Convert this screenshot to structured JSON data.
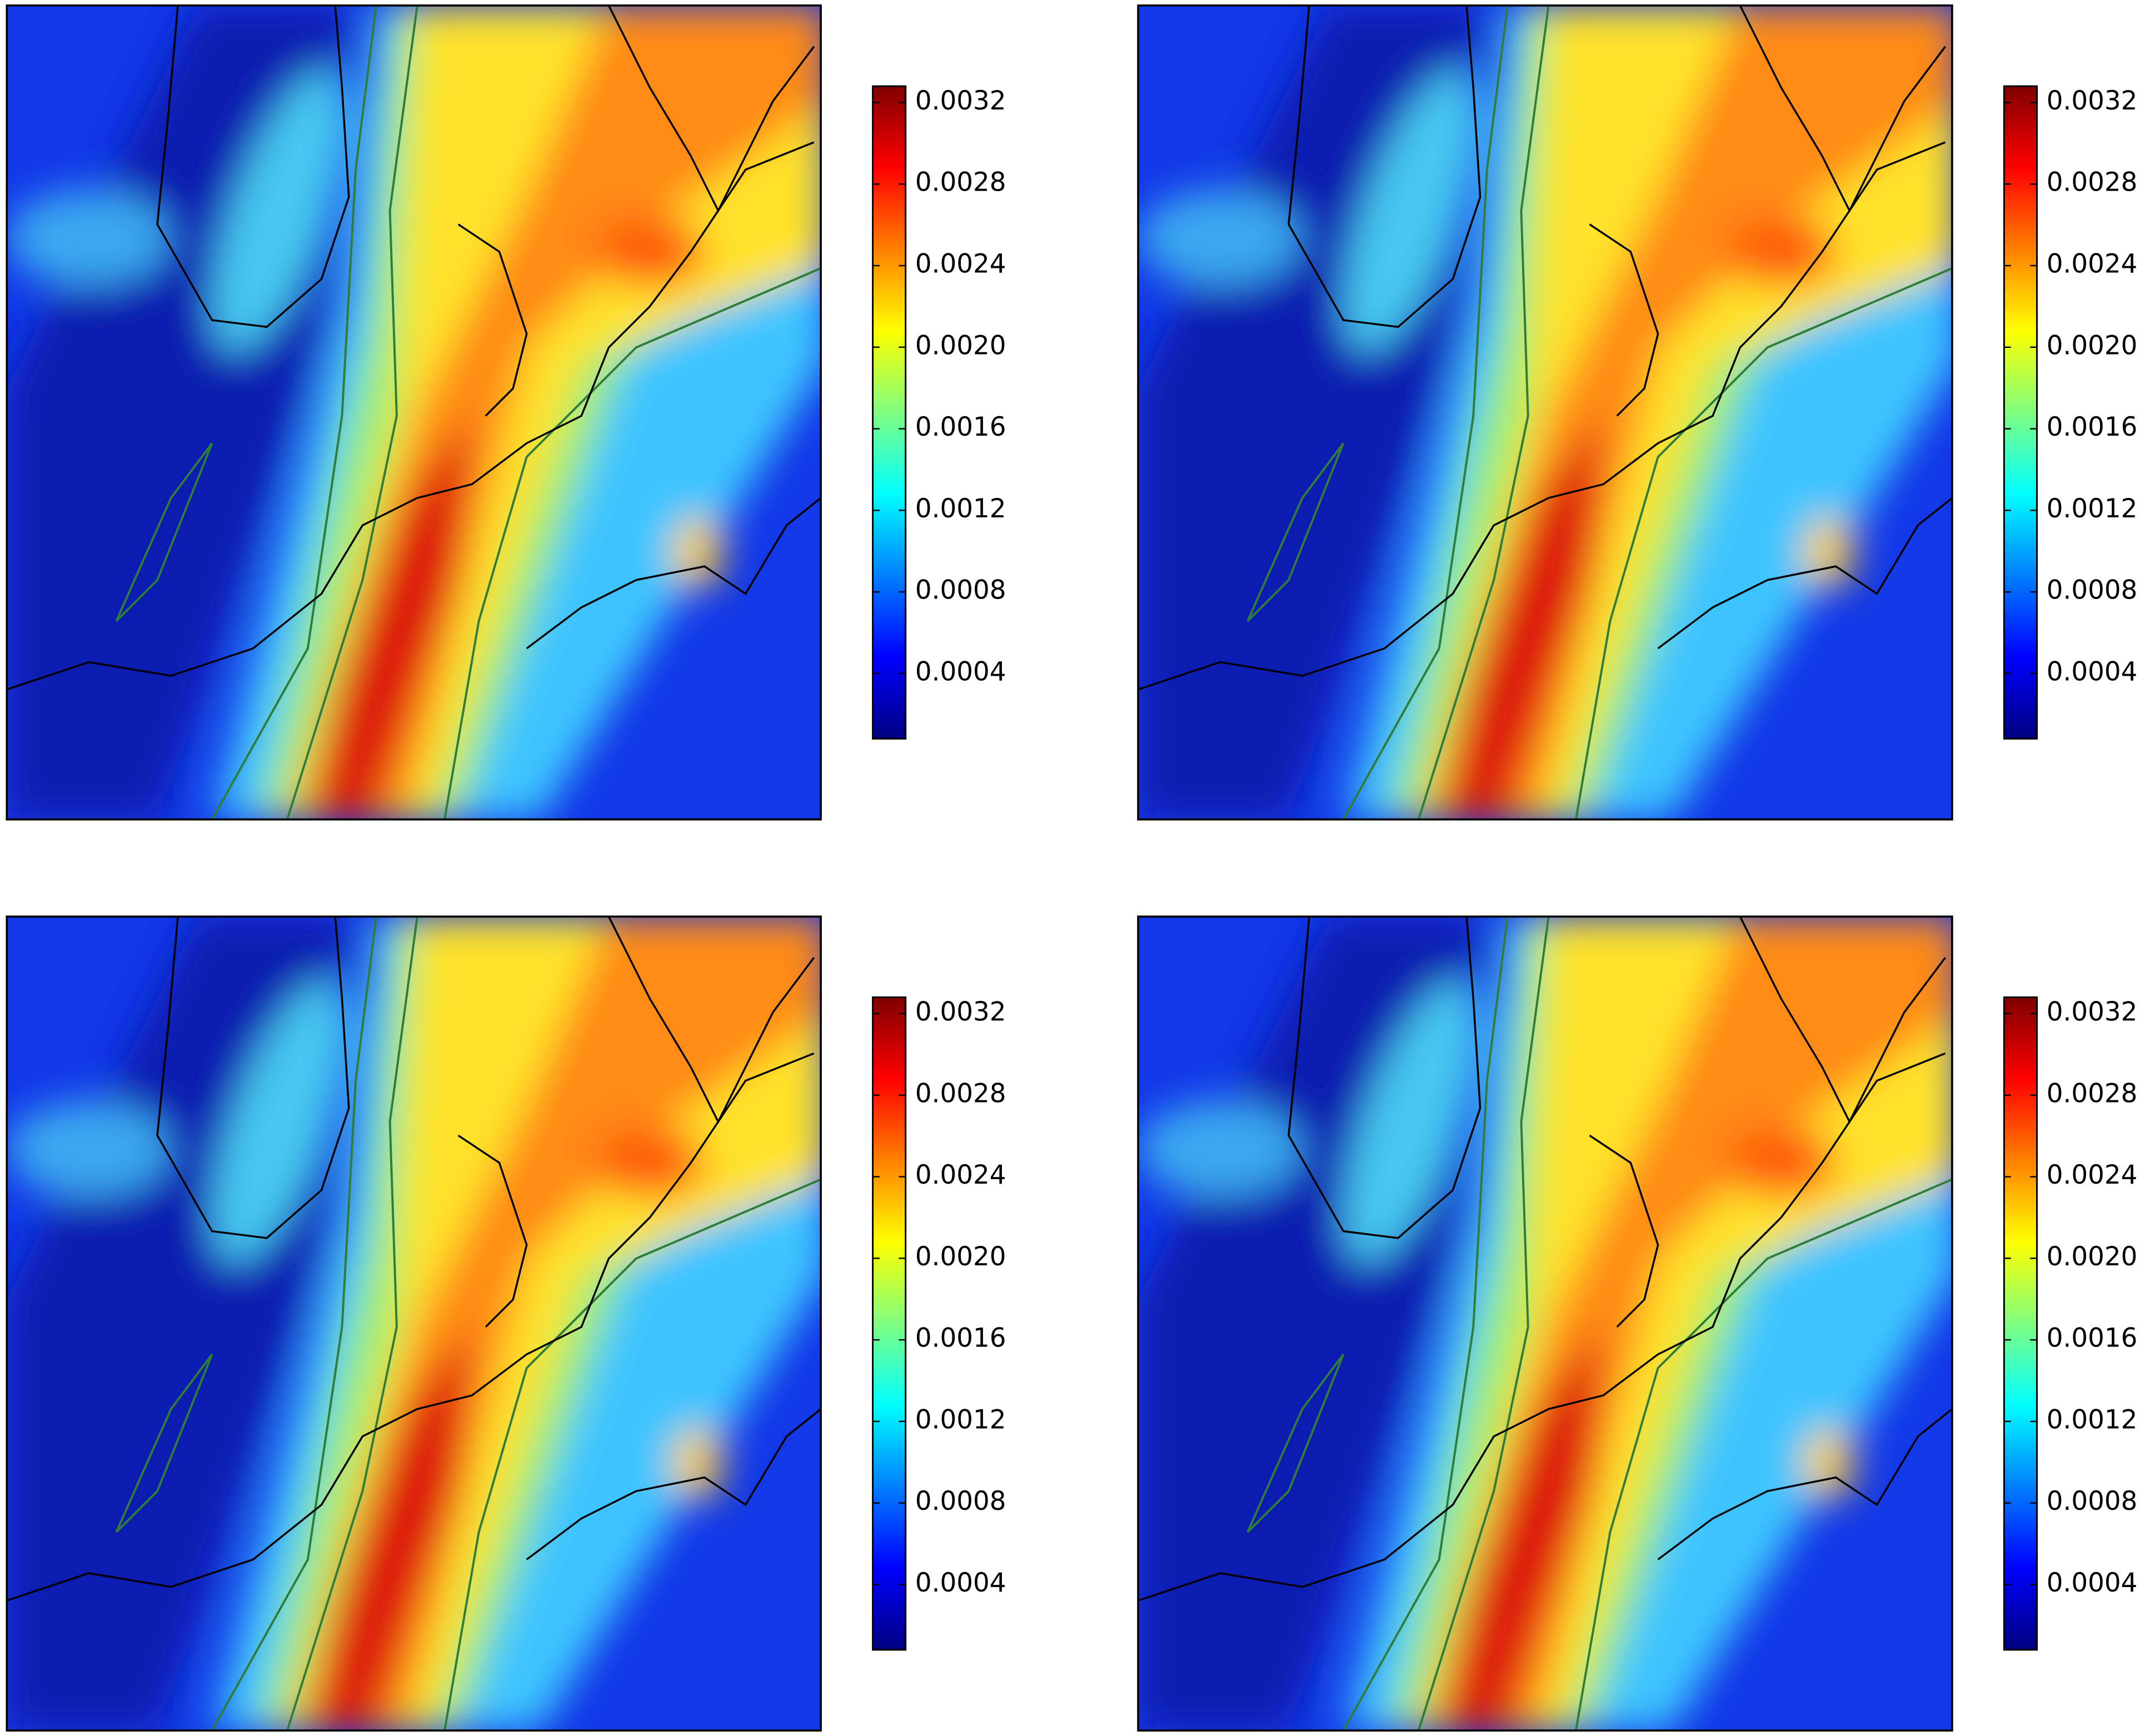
{
  "panels": [
    {
      "colorbar": {
        "clim": [
          8e-05,
          0.00328
        ],
        "ticks": [
          0.0004,
          0.0008,
          0.0012,
          0.0016,
          {
            "value": 0.002,
            "label": "0.0020"
          },
          0.0024,
          0.0028,
          0.0032
        ]
      }
    },
    {
      "colorbar": {
        "clim": [
          8e-05,
          0.00328
        ],
        "ticks": [
          0.0004,
          0.0008,
          0.0012,
          0.0016,
          {
            "value": 0.002,
            "label": "0.0020"
          },
          0.0024,
          0.0028,
          0.0032
        ]
      }
    },
    {
      "colorbar": {
        "clim": [
          8e-05,
          0.00328
        ],
        "ticks": [
          0.0004,
          0.0008,
          0.0012,
          0.0016,
          {
            "value": 0.002,
            "label": "0.0020"
          },
          0.0024,
          0.0028,
          0.0032
        ]
      }
    },
    {
      "colorbar": {
        "clim": [
          8e-05,
          0.00328
        ],
        "ticks": [
          0.0004,
          0.0008,
          0.0012,
          0.0016,
          {
            "value": 0.002,
            "label": "0.0020"
          },
          0.0024,
          0.0028,
          0.0032
        ]
      }
    }
  ]
}
